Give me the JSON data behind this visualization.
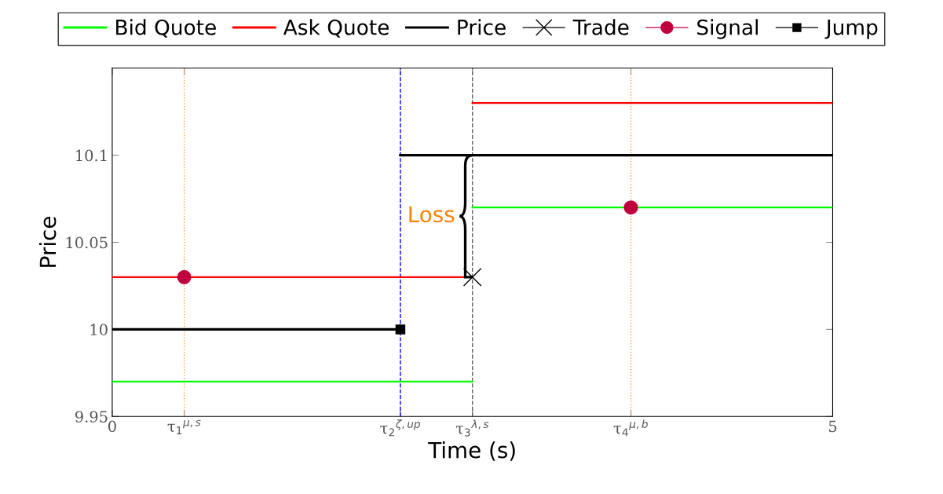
{
  "chart_data": {
    "type": "line",
    "xlabel": "Time (s)",
    "ylabel": "Price",
    "xlim": [
      0,
      5
    ],
    "ylim": [
      9.95,
      10.15
    ],
    "xticks": [
      0,
      {
        "value": 0.5,
        "label": "τ$_{1}$$^{μ,s}$"
      },
      {
        "value": 2,
        "label": "τ$_{2}$$^{ζ,up}$"
      },
      {
        "value": 2.5,
        "label": "τ$_{3}$$^{λ,s}$"
      },
      {
        "value": 3.6,
        "label": "τ$_{4}$$^{μ,b}$"
      },
      5
    ],
    "yticks": [
      9.95,
      10,
      10.05,
      10.1
    ],
    "grid": false,
    "legend": "top",
    "series": [
      {
        "name": "Bid Quote",
        "color": "#00ff00",
        "x": [
          0,
          2.5,
          null,
          2.5,
          5
        ],
        "values": [
          9.97,
          9.97,
          null,
          10.07,
          10.07
        ]
      },
      {
        "name": "Ask Quote",
        "color": "#ff0000",
        "x": [
          0,
          2.5,
          null,
          2.5,
          5
        ],
        "values": [
          10.03,
          10.03,
          null,
          10.13,
          10.13
        ]
      },
      {
        "name": "Price",
        "color": "#000000",
        "x": [
          0,
          2,
          null,
          2,
          5
        ],
        "values": [
          10,
          10,
          null,
          10.1,
          10.1
        ]
      },
      {
        "name": "Trade",
        "type": "scatter",
        "marker": "cross",
        "color": "#000000",
        "x": [
          2.5
        ],
        "values": [
          10.03
        ]
      },
      {
        "name": "Signal",
        "type": "scatter",
        "marker": "circle",
        "color": "#c0003c",
        "x": [
          0.5,
          3.6
        ],
        "values": [
          10.03,
          10.07
        ]
      },
      {
        "name": "Jump",
        "type": "scatter",
        "marker": "square",
        "color": "#000000",
        "x": [
          2
        ],
        "values": [
          10
        ]
      }
    ],
    "ref_lines": [
      {
        "axis": "x",
        "value": 0.5,
        "color": "#ffa040",
        "line_style": "dotted"
      },
      {
        "axis": "x",
        "value": 2,
        "color": "#0000ff",
        "line_style": "dashed"
      },
      {
        "axis": "x",
        "value": 2.5,
        "color": "#606060",
        "line_style": "dashed"
      },
      {
        "axis": "x",
        "value": 3.6,
        "color": "#ffa040",
        "line_style": "dotted"
      }
    ],
    "annotations": [
      {
        "text": "Loss",
        "x": 2.5,
        "y": 10.065
      }
    ]
  }
}
